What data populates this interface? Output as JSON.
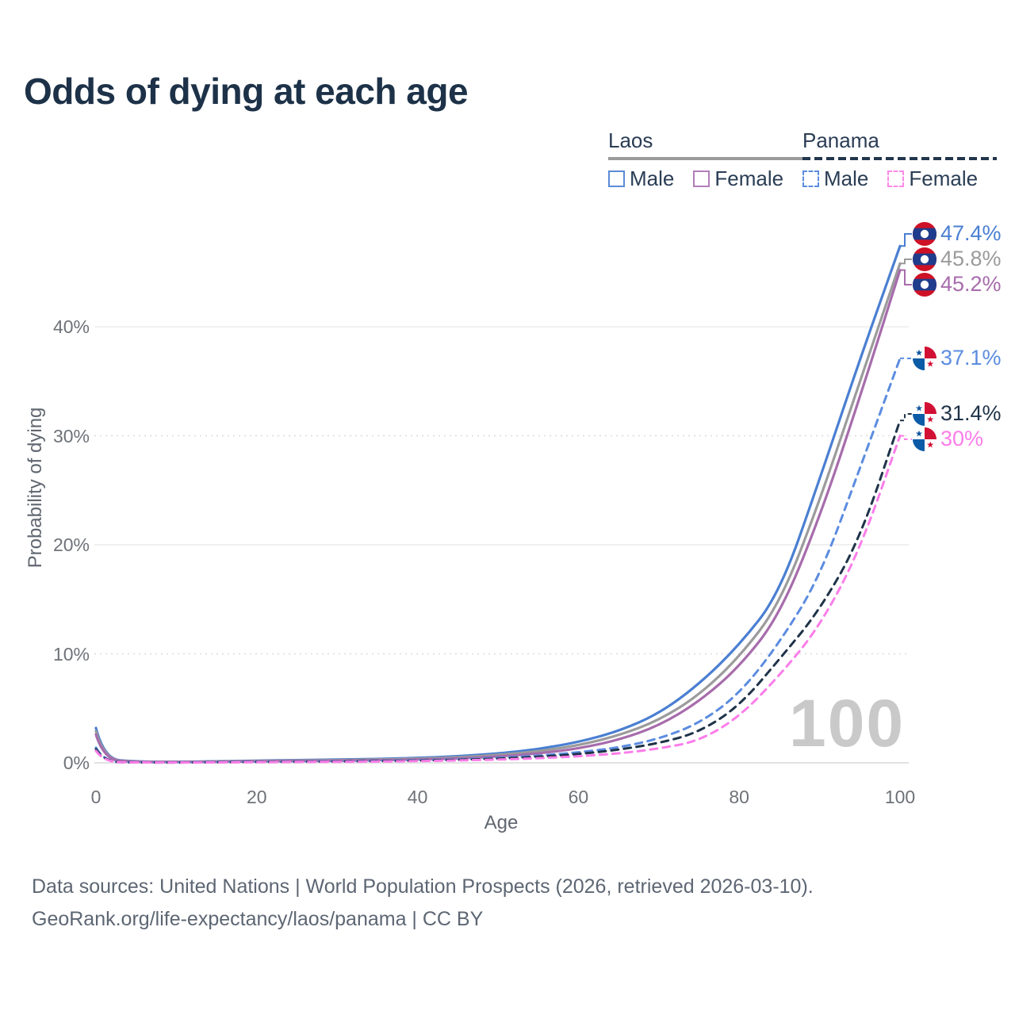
{
  "title": "Odds of dying at each age",
  "legend": {
    "groups": [
      {
        "label": "Laos",
        "line_style": "solid",
        "underline_color": "#9a9a9a",
        "items": [
          {
            "label": "Male",
            "color": "#4a7fd2",
            "dashed": false
          },
          {
            "label": "Female",
            "color": "#a76cac",
            "dashed": false
          }
        ]
      },
      {
        "label": "Panama",
        "line_style": "dashed",
        "underline_color": "#22364d",
        "items": [
          {
            "label": "Male",
            "color": "#5c8ce0",
            "dashed": true
          },
          {
            "label": "Female",
            "color": "#fb7de9",
            "dashed": true
          }
        ]
      }
    ]
  },
  "chart_data": {
    "type": "line",
    "title": "Odds of dying at each age",
    "xlabel": "Age",
    "ylabel": "Probability of dying",
    "xlim": [
      0,
      100
    ],
    "ylim_percent": [
      0,
      48
    ],
    "grid": "horizontal only, solid at 0/20/40%, dotted at 10/30%",
    "legend_position": "top-right",
    "watermark": "100",
    "x_axis": {
      "title": "Age",
      "ticks": [
        {
          "label": "0",
          "value": 0
        },
        {
          "label": "20",
          "value": 20
        },
        {
          "label": "40",
          "value": 40
        },
        {
          "label": "60",
          "value": 60
        },
        {
          "label": "80",
          "value": 80
        },
        {
          "label": "100",
          "value": 100
        }
      ]
    },
    "y_axis": {
      "title": "Probability of dying",
      "ticks": [
        {
          "label": "0%",
          "value": 0,
          "grid": "solid"
        },
        {
          "label": "10%",
          "value": 10,
          "grid": "dotted"
        },
        {
          "label": "20%",
          "value": 20,
          "grid": "solid"
        },
        {
          "label": "30%",
          "value": 30,
          "grid": "dotted"
        },
        {
          "label": "40%",
          "value": 40,
          "grid": "solid"
        }
      ]
    },
    "ages": [
      0,
      1,
      5,
      10,
      15,
      20,
      25,
      30,
      35,
      40,
      45,
      50,
      55,
      60,
      65,
      70,
      75,
      80,
      85,
      90,
      95,
      100
    ],
    "series": [
      {
        "name": "Laos Male",
        "country": "Laos",
        "sex": "Male",
        "flag": "laos",
        "color": "#4a7fd2",
        "dashed": false,
        "end_label": "47.4%",
        "end_value_percent": 47.4,
        "values_percent": [
          3.2,
          0.35,
          0.1,
          0.09,
          0.13,
          0.2,
          0.25,
          0.3,
          0.35,
          0.45,
          0.6,
          0.85,
          1.25,
          1.9,
          2.9,
          4.5,
          7.2,
          10.8,
          15.5,
          26.0,
          37.0,
          47.4
        ]
      },
      {
        "name": "Laos Both sexes",
        "country": "Laos",
        "sex": "Both",
        "flag": "laos",
        "color": "#9b9b9b",
        "dashed": false,
        "end_label": "45.8%",
        "end_value_percent": 45.8,
        "values_percent": [
          2.9,
          0.31,
          0.09,
          0.08,
          0.11,
          0.17,
          0.21,
          0.25,
          0.3,
          0.38,
          0.5,
          0.72,
          1.05,
          1.6,
          2.5,
          3.9,
          6.2,
          9.7,
          14.5,
          24.0,
          35.0,
          45.8
        ]
      },
      {
        "name": "Laos Female",
        "country": "Laos",
        "sex": "Female",
        "flag": "laos",
        "color": "#a76cac",
        "dashed": false,
        "end_label": "45.2%",
        "end_value_percent": 45.2,
        "values_percent": [
          2.6,
          0.27,
          0.08,
          0.07,
          0.09,
          0.14,
          0.17,
          0.2,
          0.24,
          0.3,
          0.4,
          0.58,
          0.85,
          1.3,
          2.1,
          3.4,
          5.6,
          8.8,
          13.5,
          22.5,
          33.5,
          45.2
        ]
      },
      {
        "name": "Panama Male",
        "country": "Panama",
        "sex": "Male",
        "flag": "panama",
        "color": "#5c8ce0",
        "dashed": true,
        "end_label": "37.1%",
        "end_value_percent": 37.1,
        "values_percent": [
          1.4,
          0.1,
          0.04,
          0.035,
          0.06,
          0.1,
          0.12,
          0.15,
          0.18,
          0.24,
          0.32,
          0.45,
          0.65,
          0.95,
          1.4,
          2.2,
          3.6,
          6.3,
          11.0,
          17.0,
          27.0,
          37.1
        ]
      },
      {
        "name": "Panama Both sexes",
        "country": "Panama",
        "sex": "Both",
        "flag": "panama",
        "color": "#1f3349",
        "dashed": true,
        "end_label": "31.4%",
        "end_value_percent": 31.4,
        "values_percent": [
          1.25,
          0.09,
          0.035,
          0.03,
          0.05,
          0.08,
          0.1,
          0.12,
          0.15,
          0.2,
          0.27,
          0.38,
          0.55,
          0.8,
          1.2,
          1.8,
          2.8,
          5.2,
          9.5,
          14.0,
          20.5,
          31.4
        ]
      },
      {
        "name": "Panama Female",
        "country": "Panama",
        "sex": "Female",
        "flag": "panama",
        "color": "#fb7de9",
        "dashed": true,
        "end_label": "30%",
        "end_value_percent": 30,
        "values_percent": [
          1.1,
          0.08,
          0.03,
          0.025,
          0.04,
          0.06,
          0.08,
          0.09,
          0.12,
          0.16,
          0.22,
          0.3,
          0.42,
          0.6,
          0.85,
          1.3,
          2.0,
          4.2,
          8.0,
          12.5,
          19.5,
          30.0
        ]
      }
    ],
    "flag_colors": {
      "laos_red": "#ce1126",
      "laos_blue": "#1f3d8c",
      "laos_white": "#ffffff",
      "panama_red": "#d21034",
      "panama_blue": "#0b5ba6",
      "panama_star_blue": "#1558a0",
      "panama_white": "#ffffff"
    }
  },
  "footer": {
    "line1": "Data sources: United Nations | World Population Prospects (2026, retrieved 2026-03-10).",
    "line2": "GeoRank.org/life-expectancy/laos/panama | CC BY"
  }
}
